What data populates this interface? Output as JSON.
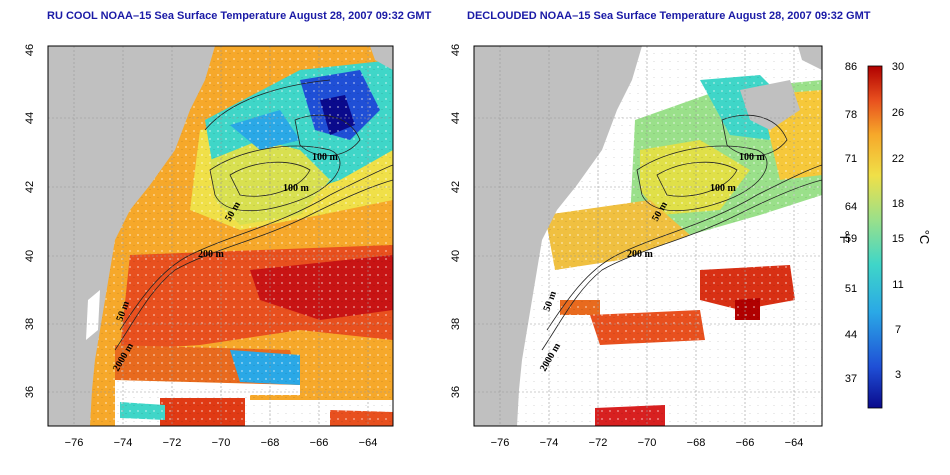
{
  "panels": [
    {
      "title": "RU COOL NOAA–15 Sea Surface Temperature August 28, 2007 09:32 GMT"
    },
    {
      "title": "DECLOUDED NOAA–15 Sea Surface Temperature August 28, 2007 09:32 GMT"
    }
  ],
  "axes": {
    "lon_ticks": [
      "−76",
      "−74",
      "−72",
      "−70",
      "−68",
      "−66",
      "−64"
    ],
    "lat_ticks": [
      "36",
      "38",
      "40",
      "42",
      "44",
      "46"
    ]
  },
  "contour_labels": [
    "100 m",
    "100 m",
    "50 m",
    "200 m",
    "50 m",
    "2000 m"
  ],
  "colorbar": {
    "fahrenheit_ticks": [
      "86",
      "78",
      "71",
      "64",
      "59",
      "51",
      "44",
      "37"
    ],
    "celsius_ticks": [
      "30",
      "26",
      "22",
      "18",
      "15",
      "11",
      "7",
      "3"
    ],
    "fahrenheit_unit": "°F",
    "celsius_unit": "°C"
  },
  "colors": {
    "land": "#c0c0c0",
    "title": "#1a1aa6",
    "scale": [
      "#0a0a8c",
      "#1f4fd6",
      "#2aa8e6",
      "#3fd6c8",
      "#9ae08a",
      "#f0e048",
      "#f6a82a",
      "#e8501e",
      "#b00000"
    ]
  }
}
